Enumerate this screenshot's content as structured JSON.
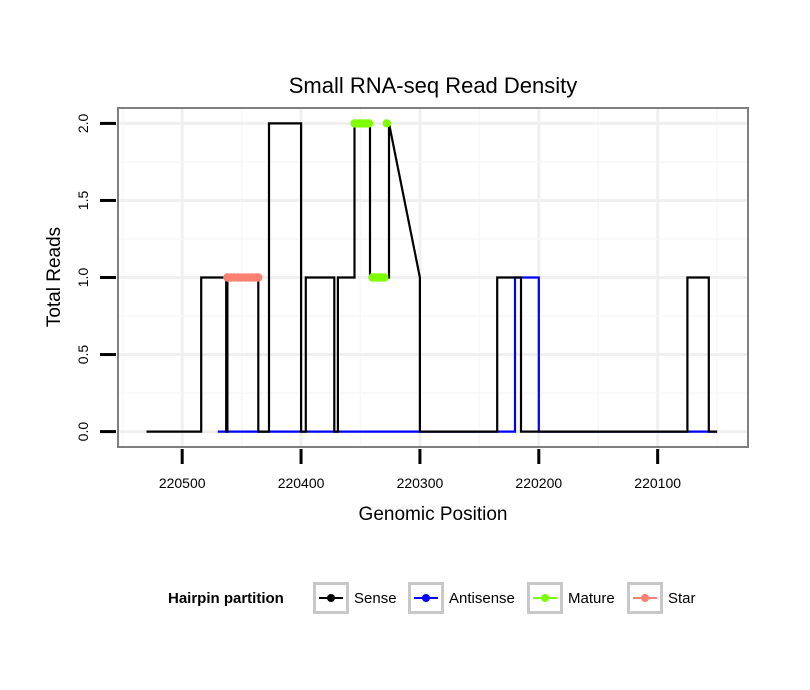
{
  "chart_data": {
    "type": "line",
    "title": "Small RNA-seq Read Density",
    "xlabel": "Genomic Position",
    "ylabel": "Total Reads",
    "xlim": [
      220554,
      220024
    ],
    "ylim": [
      -0.1,
      2.1
    ],
    "x_reversed": true,
    "x_ticks": [
      220500,
      220400,
      220300,
      220200,
      220100
    ],
    "x_tick_labels": [
      "220500",
      "220400",
      "220300",
      "220200",
      "220100"
    ],
    "y_ticks": [
      0,
      0.5,
      1,
      1.5,
      2
    ],
    "y_tick_labels": [
      "0.0",
      "0.5",
      "1.0",
      "1.5",
      "2.0"
    ],
    "grid": true,
    "legend": {
      "title": "Hairpin partition",
      "placement": "bottom",
      "entries": [
        {
          "name": "Sense",
          "color": "#000000"
        },
        {
          "name": "Antisense",
          "color": "#0000ff"
        },
        {
          "name": "Mature",
          "color": "#7fff00"
        },
        {
          "name": "Star",
          "color": "#fa8072"
        }
      ]
    },
    "series": [
      {
        "name": "Sense",
        "color": "#000000",
        "kind": "line",
        "x": [
          220530,
          220484,
          220484,
          220463,
          220463,
          220462,
          220462,
          220436,
          220436,
          220427,
          220427,
          220400,
          220400,
          220396,
          220396,
          220372,
          220372,
          220369,
          220369,
          220355,
          220355,
          220342,
          220342,
          220326,
          220326,
          220300,
          220300,
          220235,
          220235,
          220215,
          220215,
          220200,
          220200,
          220075,
          220075,
          220057,
          220057,
          220050
        ],
        "values": [
          0,
          0,
          1,
          1,
          0,
          0,
          1,
          1,
          0,
          0,
          2,
          2,
          0,
          0,
          1,
          1,
          0,
          0,
          1,
          1,
          2,
          2,
          1,
          1,
          2,
          1,
          0,
          0,
          1,
          1,
          0,
          0,
          0,
          0,
          1,
          1,
          0,
          0
        ]
      },
      {
        "name": "Antisense",
        "color": "#0000ff",
        "kind": "line",
        "x": [
          220470,
          220220,
          220220,
          220200,
          220200,
          220050
        ],
        "values": [
          0,
          0,
          1,
          1,
          0,
          0
        ]
      },
      {
        "name": "Mature",
        "color": "#7fff00",
        "kind": "points",
        "x": [
          220355,
          220353,
          220351,
          220349,
          220347,
          220345,
          220343,
          220328,
          220340,
          220338,
          220336,
          220334,
          220332,
          220330
        ],
        "values": [
          2,
          2,
          2,
          2,
          2,
          2,
          2,
          2,
          1,
          1,
          1,
          1,
          1,
          1
        ]
      },
      {
        "name": "Star",
        "color": "#fa8072",
        "kind": "points",
        "x": [
          220462,
          220459,
          220456,
          220453,
          220450,
          220447,
          220444,
          220441,
          220438,
          220436
        ],
        "values": [
          1,
          1,
          1,
          1,
          1,
          1,
          1,
          1,
          1,
          1
        ]
      }
    ]
  }
}
